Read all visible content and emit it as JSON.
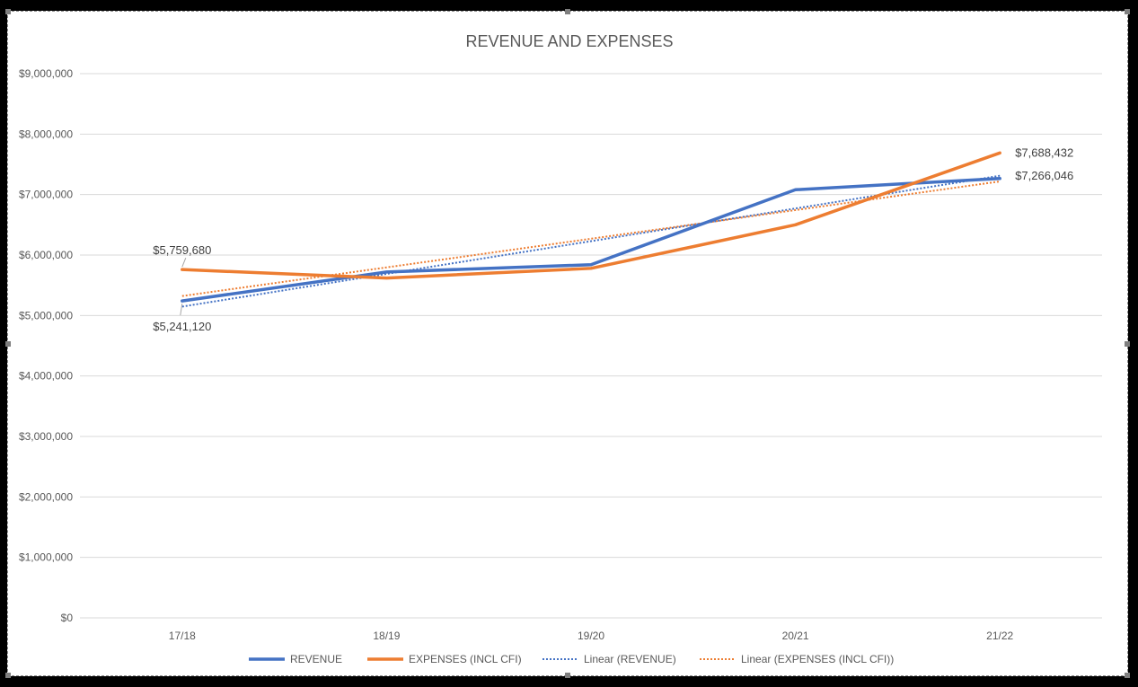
{
  "chart_data": {
    "type": "line",
    "title": "REVENUE AND EXPENSES",
    "xlabel": "",
    "ylabel": "",
    "categories": [
      "17/18",
      "18/19",
      "19/20",
      "20/21",
      "21/22"
    ],
    "ylim": [
      0,
      9000000
    ],
    "y_ticks": [
      {
        "value": 0,
        "label": "$0"
      },
      {
        "value": 1000000,
        "label": "$1,000,000"
      },
      {
        "value": 2000000,
        "label": "$2,000,000"
      },
      {
        "value": 3000000,
        "label": "$3,000,000"
      },
      {
        "value": 4000000,
        "label": "$4,000,000"
      },
      {
        "value": 5000000,
        "label": "$5,000,000"
      },
      {
        "value": 6000000,
        "label": "$6,000,000"
      },
      {
        "value": 7000000,
        "label": "$7,000,000"
      },
      {
        "value": 8000000,
        "label": "$8,000,000"
      },
      {
        "value": 9000000,
        "label": "$9,000,000"
      }
    ],
    "grid": true,
    "legend_position": "bottom",
    "series": [
      {
        "name": "REVENUE",
        "color": "#4472C4",
        "style": "solid",
        "values": [
          5241120,
          5720000,
          5840000,
          7080000,
          7266046
        ],
        "data_labels": [
          {
            "index": 0,
            "text": "$5,241,120"
          },
          {
            "index": 4,
            "text": "$7,266,046"
          }
        ]
      },
      {
        "name": "EXPENSES (INCL CFI)",
        "color": "#ED7D31",
        "style": "solid",
        "values": [
          5759680,
          5620000,
          5780000,
          6500000,
          7688432
        ],
        "data_labels": [
          {
            "index": 0,
            "text": "$5,759,680"
          },
          {
            "index": 4,
            "text": "$7,688,432"
          }
        ]
      }
    ],
    "trendlines": [
      {
        "name": "Linear (REVENUE)",
        "color": "#4472C4",
        "style": "dotted",
        "type": "linear",
        "of_series": "REVENUE"
      },
      {
        "name": "Linear (EXPENSES (INCL CFI))",
        "color": "#ED7D31",
        "style": "dotted",
        "type": "linear",
        "of_series": "EXPENSES (INCL CFI)"
      }
    ]
  }
}
